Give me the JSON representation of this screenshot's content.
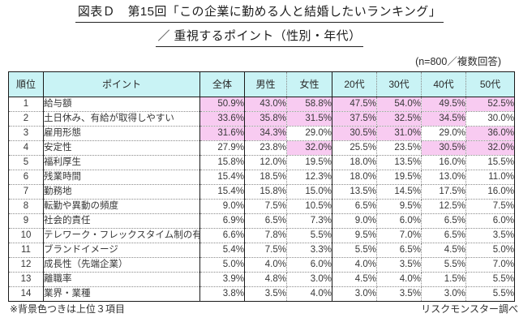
{
  "title": {
    "line1": "図表Ｄ　第15回「この企業に勤める人と結婚したいランキング」",
    "line2": "／ 重視するポイント（性別・年代）"
  },
  "note": "(n=800／複数回答)",
  "footnotes": {
    "left": "※背景色つきは上位３項目",
    "right": "リスクモンスター調べ"
  },
  "colors": {
    "header_bg": "#c9f3f5",
    "highlight_bg": "#f8cbf1",
    "border": "#1a1a1a",
    "text": "#333333"
  },
  "chart_data": {
    "type": "table",
    "title": "図表Ｄ　第15回「この企業に勤める人と結婚したいランキング」／ 重視するポイント（性別・年代）",
    "sample_note": "n=800／複数回答",
    "credit": "リスクモンスター調べ",
    "highlight_rule": "背景色つきは上位３項目",
    "unit": "%",
    "columns": [
      "順位",
      "ポイント",
      "全体",
      "男性",
      "女性",
      "20代",
      "30代",
      "40代",
      "50代"
    ],
    "rows": [
      [
        1,
        "給与額",
        50.9,
        43.0,
        58.8,
        47.5,
        54.0,
        49.5,
        52.5
      ],
      [
        2,
        "土日休み、有給が取得しやすい",
        33.6,
        35.8,
        31.5,
        37.5,
        32.5,
        34.5,
        30.0
      ],
      [
        3,
        "雇用形態",
        31.6,
        34.3,
        29.0,
        30.5,
        31.0,
        29.0,
        36.0
      ],
      [
        4,
        "安定性",
        27.9,
        23.8,
        32.0,
        25.5,
        23.5,
        30.5,
        32.0
      ],
      [
        5,
        "福利厚生",
        15.8,
        12.0,
        19.5,
        18.0,
        13.5,
        16.0,
        15.5
      ],
      [
        6,
        "残業時間",
        15.4,
        18.5,
        12.3,
        18.0,
        19.5,
        13.0,
        11.0
      ],
      [
        7,
        "勤務地",
        15.4,
        15.8,
        15.0,
        13.5,
        14.5,
        17.5,
        16.0
      ],
      [
        8,
        "転勤や異動の頻度",
        9.0,
        7.5,
        10.5,
        6.5,
        9.5,
        12.5,
        7.5
      ],
      [
        9,
        "社会的責任",
        6.9,
        6.5,
        7.3,
        9.0,
        6.0,
        6.5,
        6.0
      ],
      [
        10,
        "テレワーク・フレックスタイム制の有無",
        6.6,
        7.8,
        5.5,
        9.5,
        7.0,
        6.5,
        3.5
      ],
      [
        11,
        "ブランドイメージ",
        5.4,
        7.5,
        3.3,
        5.5,
        6.5,
        4.5,
        5.0
      ],
      [
        12,
        "成長性（先端企業）",
        5.0,
        4.0,
        6.0,
        4.0,
        3.5,
        5.5,
        7.0
      ],
      [
        13,
        "離職率",
        3.9,
        4.8,
        3.0,
        4.5,
        4.0,
        1.5,
        5.5
      ],
      [
        14,
        "業界・業種",
        3.8,
        3.5,
        4.0,
        3.0,
        3.5,
        3.0,
        5.5
      ]
    ]
  }
}
